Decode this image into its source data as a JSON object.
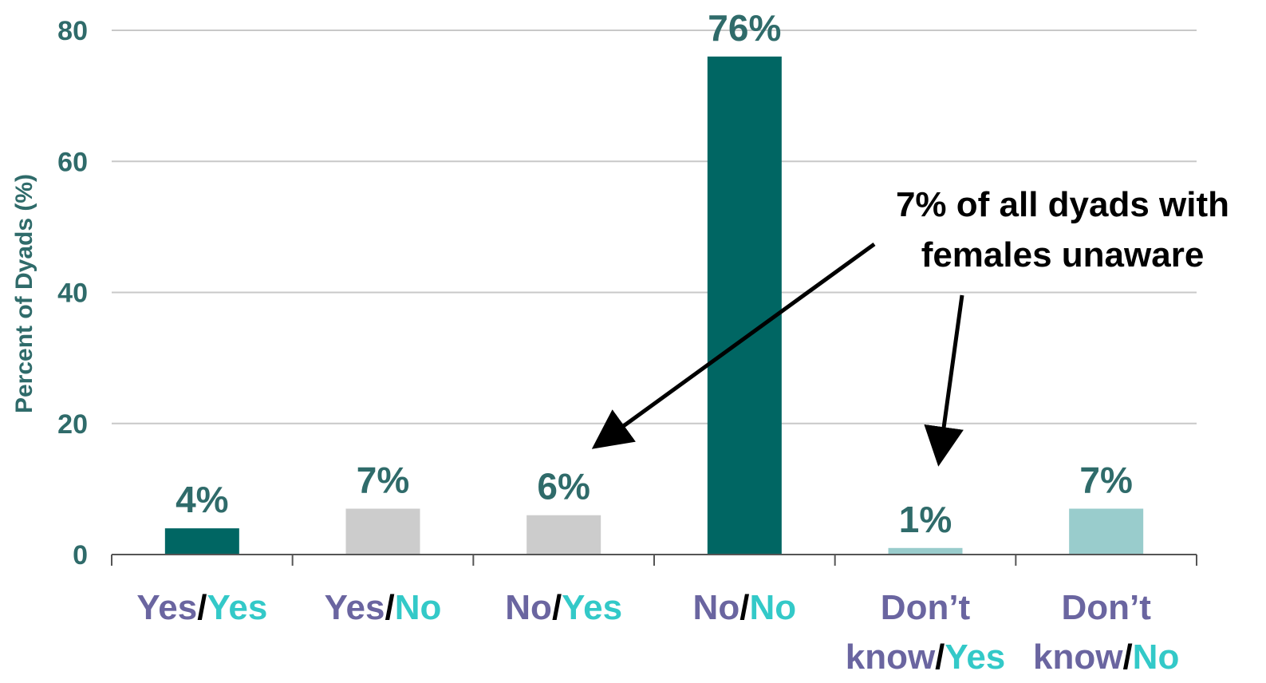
{
  "chart_data": {
    "type": "bar",
    "ylabel": "Percent of Dyads (%)",
    "xlabel": "",
    "ylim": [
      0,
      80
    ],
    "yticks": [
      0,
      20,
      40,
      60,
      80
    ],
    "grid": true,
    "categories": [
      {
        "first": "Yes",
        "second": "Yes"
      },
      {
        "first": "Yes",
        "second": "No"
      },
      {
        "first": "No",
        "second": "Yes"
      },
      {
        "first": "No",
        "second": "No"
      },
      {
        "first": "Don’t know",
        "second": "Yes"
      },
      {
        "first": "Don’t know",
        "second": "No"
      }
    ],
    "values": [
      4,
      7,
      6,
      76,
      1,
      7
    ],
    "data_labels": [
      "4%",
      "7%",
      "6%",
      "76%",
      "1%",
      "7%"
    ],
    "bar_colors": [
      "#006663",
      "#cccccc",
      "#cccccc",
      "#006663",
      "#99cccc",
      "#99cccc"
    ],
    "annotation": {
      "lines": [
        "7% of all dyads with",
        "females unaware"
      ],
      "points_to": [
        "No/Yes",
        "Don’t know/Yes"
      ]
    }
  },
  "colors": {
    "first_word": "#6a65a0",
    "second_word": "#33c9c8",
    "separator": "#000000",
    "axis_text": "#2f6b6a",
    "grid": "#c8c8c8"
  }
}
